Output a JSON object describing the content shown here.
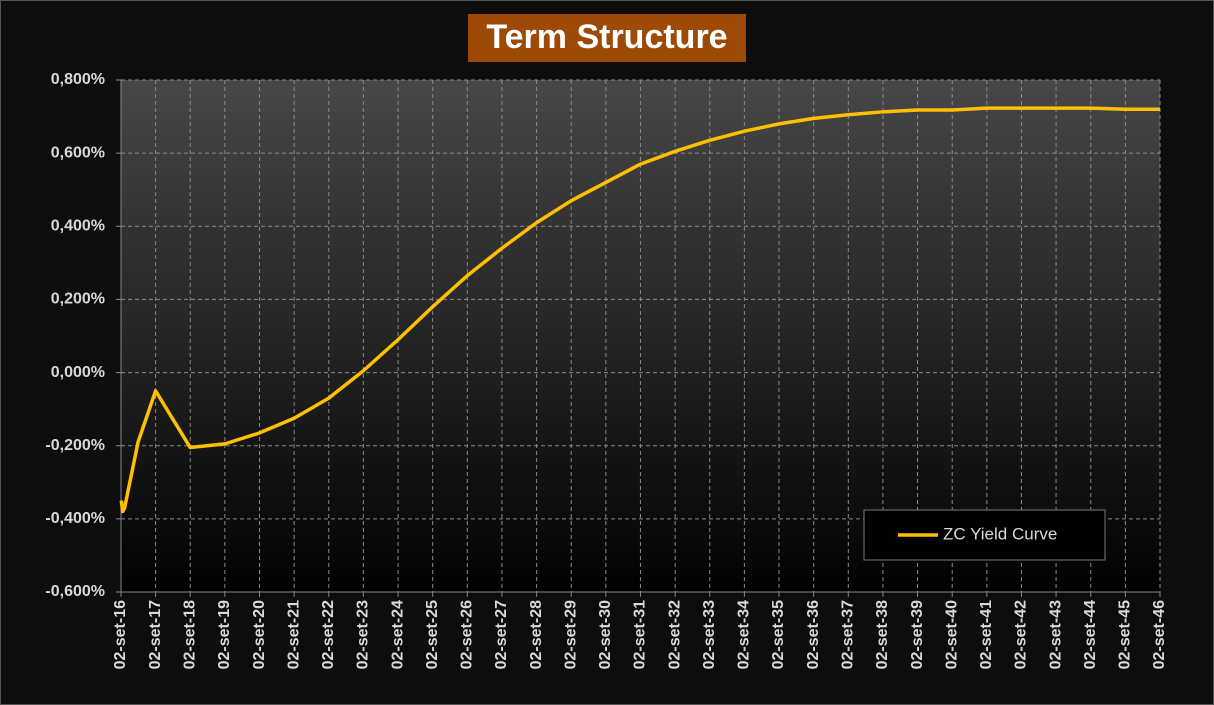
{
  "chart_data": {
    "type": "line",
    "title": "Term Structure",
    "x": [
      "2016-09-05",
      "2016-09-20",
      "2016-10-10",
      "2017-03-01",
      "2017-09-02",
      "2018-09-02",
      "2019-09-02",
      "2020-09-02",
      "2021-09-02",
      "2022-09-02",
      "2023-09-02",
      "2024-09-02",
      "2025-09-02",
      "2026-09-02",
      "2027-09-02",
      "2028-09-02",
      "2029-09-02",
      "2030-09-02",
      "2031-09-02",
      "2032-09-02",
      "2033-09-02",
      "2034-09-02",
      "2035-09-02",
      "2036-09-02",
      "2037-09-02",
      "2038-09-02",
      "2039-09-02",
      "2040-09-02",
      "2041-09-02",
      "2042-09-02",
      "2043-09-02",
      "2044-09-02",
      "2045-09-02",
      "2046-09-02"
    ],
    "series": [
      {
        "name": "ZC Yield Curve",
        "color": "#ffc000",
        "values": [
          -0.35,
          -0.38,
          -0.37,
          -0.19,
          -0.05,
          -0.205,
          -0.195,
          -0.165,
          -0.125,
          -0.07,
          0.005,
          0.09,
          0.18,
          0.265,
          0.34,
          0.41,
          0.47,
          0.52,
          0.57,
          0.605,
          0.635,
          0.66,
          0.68,
          0.695,
          0.705,
          0.713,
          0.718,
          0.718,
          0.723,
          0.723,
          0.723,
          0.723,
          0.72,
          0.72
        ]
      }
    ],
    "xlim": [
      "2016-09-02",
      "2046-09-02"
    ],
    "xticks": [
      {
        "value": "2016-09-02",
        "label": "02-set-16"
      },
      {
        "value": "2017-09-02",
        "label": "02-set-17"
      },
      {
        "value": "2018-09-02",
        "label": "02-set-18"
      },
      {
        "value": "2019-09-02",
        "label": "02-set-19"
      },
      {
        "value": "2020-09-02",
        "label": "02-set-20"
      },
      {
        "value": "2021-09-02",
        "label": "02-set-21"
      },
      {
        "value": "2022-09-02",
        "label": "02-set-22"
      },
      {
        "value": "2023-09-02",
        "label": "02-set-23"
      },
      {
        "value": "2024-09-02",
        "label": "02-set-24"
      },
      {
        "value": "2025-09-02",
        "label": "02-set-25"
      },
      {
        "value": "2026-09-02",
        "label": "02-set-26"
      },
      {
        "value": "2027-09-02",
        "label": "02-set-27"
      },
      {
        "value": "2028-09-02",
        "label": "02-set-28"
      },
      {
        "value": "2029-09-02",
        "label": "02-set-29"
      },
      {
        "value": "2030-09-02",
        "label": "02-set-30"
      },
      {
        "value": "2031-09-02",
        "label": "02-set-31"
      },
      {
        "value": "2032-09-02",
        "label": "02-set-32"
      },
      {
        "value": "2033-09-02",
        "label": "02-set-33"
      },
      {
        "value": "2034-09-02",
        "label": "02-set-34"
      },
      {
        "value": "2035-09-02",
        "label": "02-set-35"
      },
      {
        "value": "2036-09-02",
        "label": "02-set-36"
      },
      {
        "value": "2037-09-02",
        "label": "02-set-37"
      },
      {
        "value": "2038-09-02",
        "label": "02-set-38"
      },
      {
        "value": "2039-09-02",
        "label": "02-set-39"
      },
      {
        "value": "2040-09-02",
        "label": "02-set-40"
      },
      {
        "value": "2041-09-02",
        "label": "02-set-41"
      },
      {
        "value": "2042-09-02",
        "label": "02-set-42"
      },
      {
        "value": "2043-09-02",
        "label": "02-set-43"
      },
      {
        "value": "2044-09-02",
        "label": "02-set-44"
      },
      {
        "value": "2045-09-02",
        "label": "02-set-45"
      },
      {
        "value": "2046-09-02",
        "label": "02-set-46"
      }
    ],
    "ylim": [
      -0.6,
      0.8
    ],
    "yticks": [
      {
        "value": -0.6,
        "label": "-0,600%"
      },
      {
        "value": -0.4,
        "label": "-0,400%"
      },
      {
        "value": -0.2,
        "label": "-0,200%"
      },
      {
        "value": 0,
        "label": "0,000%"
      },
      {
        "value": 0.2,
        "label": "0,200%"
      },
      {
        "value": 0.4,
        "label": "0,400%"
      },
      {
        "value": 0.6,
        "label": "0,600%"
      },
      {
        "value": 0.8,
        "label": "0,800%"
      }
    ],
    "grid": true,
    "legend": "lower right"
  }
}
